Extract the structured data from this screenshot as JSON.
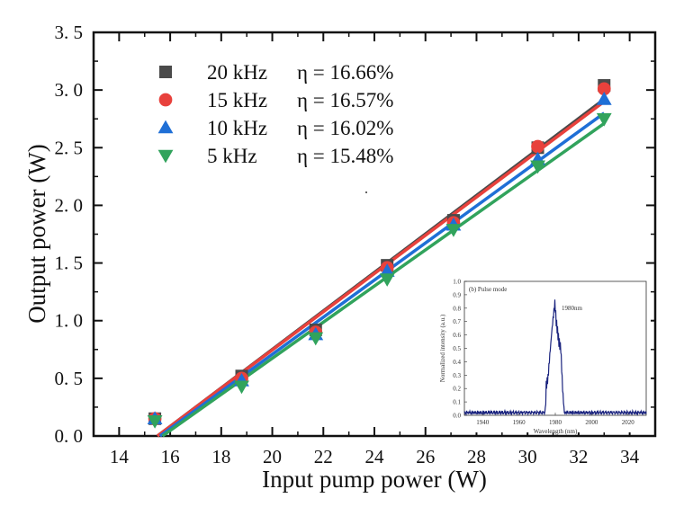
{
  "chart_data": [
    {
      "type": "scatter",
      "title": "",
      "xlabel": "Input pump power (W)",
      "ylabel": "Output power (W)",
      "xlim": [
        13,
        35
      ],
      "ylim": [
        0,
        3.5
      ],
      "xticks": [
        "14",
        "16",
        "18",
        "20",
        "22",
        "24",
        "26",
        "28",
        "30",
        "32",
        "34"
      ],
      "yticks": [
        "0.0",
        "0.5",
        "1.0",
        "1.5",
        "2.0",
        "2.5",
        "3.0",
        "3.5"
      ],
      "legend_position": "top-left",
      "x": [
        15.4,
        18.8,
        21.7,
        24.5,
        27.1,
        30.4,
        33.0
      ],
      "series": [
        {
          "name": "20 kHz",
          "eta": "η = 16.66%",
          "marker": "square",
          "color": "#4a4a4a",
          "values": [
            0.15,
            0.52,
            0.92,
            1.48,
            1.87,
            2.5,
            3.04
          ],
          "fit": [
            15.5,
            33.0,
            0.0,
            2.92
          ]
        },
        {
          "name": "15 kHz",
          "eta": "η = 16.57%",
          "marker": "circle",
          "color": "#e8413c",
          "values": [
            0.15,
            0.5,
            0.9,
            1.46,
            1.85,
            2.51,
            3.01
          ],
          "fit": [
            15.5,
            33.0,
            0.0,
            2.9
          ]
        },
        {
          "name": "10 kHz",
          "eta": "η = 16.02%",
          "marker": "triangle-up",
          "color": "#1f6fd6",
          "values": [
            0.15,
            0.48,
            0.88,
            1.43,
            1.83,
            2.4,
            2.92
          ],
          "fit": [
            15.6,
            33.0,
            0.0,
            2.8
          ]
        },
        {
          "name": "5 kHz",
          "eta": "η = 15.48%",
          "marker": "triangle-down",
          "color": "#31a35c",
          "values": [
            0.13,
            0.43,
            0.85,
            1.36,
            1.79,
            2.34,
            2.75
          ],
          "fit": [
            15.7,
            33.0,
            0.0,
            2.71
          ]
        }
      ]
    },
    {
      "type": "line",
      "title": "(b) Pulse mode",
      "annotation": "1980nm",
      "xlabel": "Wavelength (nm)",
      "ylabel": "Normalized intensity (a.u.)",
      "xlim": [
        1930,
        2030
      ],
      "ylim": [
        0,
        1.0
      ],
      "xticks": [
        "1940",
        "1960",
        "1980",
        "2000",
        "2020"
      ],
      "yticks": [
        "0.0",
        "0.1",
        "0.2",
        "0.3",
        "0.4",
        "0.5",
        "0.6",
        "0.7",
        "0.8",
        "0.9",
        "1.0"
      ],
      "color": "#1a237e",
      "x": [
        1930,
        1974.5,
        1975,
        1976,
        1977,
        1978,
        1979,
        1979.8,
        1980.5,
        1981,
        1982,
        1983,
        1984,
        1984.5,
        1985,
        2030
      ],
      "values": [
        0.02,
        0.02,
        0.22,
        0.28,
        0.45,
        0.62,
        0.75,
        0.84,
        0.7,
        0.65,
        0.55,
        0.5,
        0.2,
        0.1,
        0.02,
        0.02
      ]
    }
  ]
}
